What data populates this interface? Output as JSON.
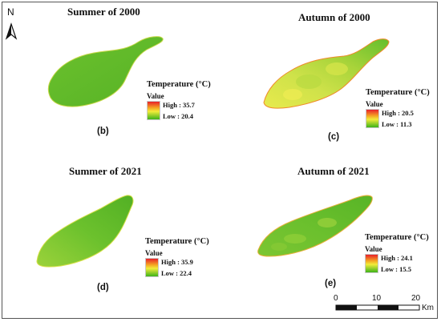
{
  "north_arrow": {
    "label": "N"
  },
  "panels": [
    {
      "title": "Summer of 2000",
      "label": "(b)",
      "legend": {
        "title": "Temperature (°C)",
        "value_label": "Value",
        "high": "High : 35.7",
        "low": "Low : 20.4"
      }
    },
    {
      "title": "Autumn of 2000",
      "label": "(c)",
      "legend": {
        "title": "Temperature (°C)",
        "value_label": "Value",
        "high": "High : 20.5",
        "low": "Low : 11.3"
      }
    },
    {
      "title": "Summer of 2021",
      "label": "(d)",
      "legend": {
        "title": "Temperature (°C)",
        "value_label": "Value",
        "high": "High : 35.9",
        "low": "Low : 22.4"
      }
    },
    {
      "title": "Autumn of 2021",
      "label": "(e)",
      "legend": {
        "title": "Temperature (°C)",
        "value_label": "Value",
        "high": "High : 24.1",
        "low": "Low : 15.5"
      }
    }
  ],
  "scale_bar": {
    "ticks": [
      "0",
      "10",
      "20"
    ],
    "unit": "Km"
  },
  "colors": {
    "ramp_high": "#e8202a",
    "ramp_mid_warm": "#f5a623",
    "ramp_mid": "#f2ec3a",
    "ramp_low": "#3db31a",
    "island_green": "#5dba28",
    "island_yellowgreen": "#9bd13a",
    "island_yellow": "#e6ea4a"
  }
}
